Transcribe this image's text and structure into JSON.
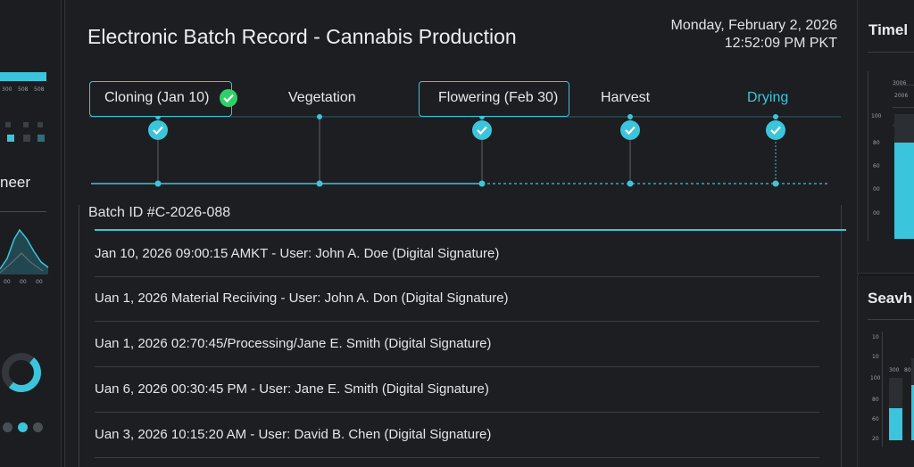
{
  "window": {
    "title": "Electronic Batch Record - Cannabis Production",
    "date": "Monday, February 2, 2026",
    "time": "12:52:09 PM PKT"
  },
  "stages": [
    {
      "label": "Cloning (Jan 10)",
      "boxed": true,
      "completed": true,
      "status_icon": "check-circle-icon"
    },
    {
      "label": "Vegetation",
      "boxed": false,
      "completed": false
    },
    {
      "label": "Flowering (Feb 30)",
      "boxed": true,
      "completed": true,
      "status_icon": "check-circle-icon"
    },
    {
      "label": "Harvest",
      "boxed": false,
      "completed": true,
      "status_icon": "check-circle-icon"
    },
    {
      "label": "Drying",
      "boxed": false,
      "completed": true,
      "status_icon": "check-circle-icon",
      "highlight": true
    }
  ],
  "batch": {
    "id_label": "Batch ID #C-2026-088"
  },
  "log_entries": [
    "Jan 10, 2026  09:00:15 AMKT - User: John A. Doe (Digital Signature)",
    "Uan 1, 2026 Material Reciiving - User: John A. Don (Digital Signature)",
    "Uan 1, 2026  02:70:45/Processing/Jane E. Smith (Digital Signature)",
    "Uan 6, 2026  00:30:45 PM - User: Jane E. Smith (Digital Signature)",
    "Uan 3, 2026  10:15:20 AM - User: David B. Chen (Digital Signature)"
  ],
  "left_panel": {
    "heading_fragment": "neer",
    "bar_ticks": [
      "300",
      "508",
      "508"
    ],
    "chart_ticks": [
      "00",
      "00",
      "00"
    ]
  },
  "right_panel": {
    "top_heading_fragment": "Timel",
    "bottom_heading_fragment": "Seavh",
    "top_ticks": [
      "3006",
      "2006",
      "100",
      "80",
      "60",
      "00",
      "00"
    ],
    "top_axis": [
      "100",
      "80",
      "60",
      "00",
      "00"
    ],
    "bottom_ticks": [
      "300",
      "100",
      "80"
    ],
    "bottom_axis": [
      "10",
      "10",
      "100",
      "80",
      "60",
      "20"
    ]
  },
  "colors": {
    "accent": "#3bc5dc",
    "success": "#2fd06a",
    "background": "#17191c",
    "text": "#e6e8ea"
  }
}
